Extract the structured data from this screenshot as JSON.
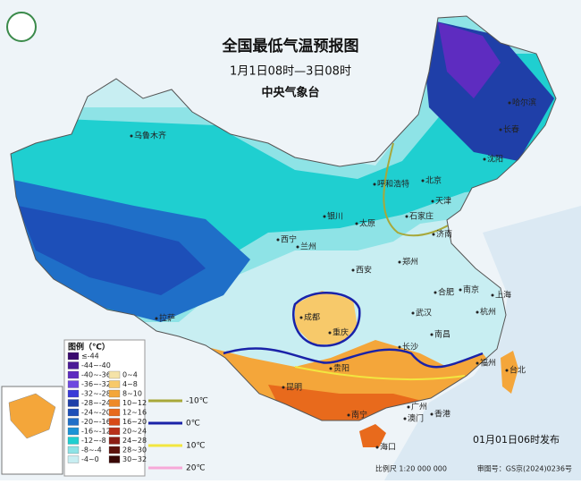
{
  "header": {
    "title": "全国最低气温预报图",
    "subtitle": "1月1日08时—3日08时",
    "org": "中央气象台"
  },
  "legend": {
    "title": "图例（℃）",
    "ranges": [
      {
        "label": "≤-44",
        "color": "#3a0a6e"
      },
      {
        "label": "-44~-40",
        "color": "#4b1a96"
      },
      {
        "label": "-40~-36",
        "color": "#5e2cc0"
      },
      {
        "label": "-36~-32",
        "color": "#6d48e0"
      },
      {
        "label": "-32~-28",
        "color": "#3a3ad8"
      },
      {
        "label": "-28~-24",
        "color": "#1f3fa8"
      },
      {
        "label": "-24~-20",
        "color": "#1d4fb8"
      },
      {
        "label": "-20~-16",
        "color": "#1f6fc8"
      },
      {
        "label": "-16~-12",
        "color": "#1b93d6"
      },
      {
        "label": "-12~-8",
        "color": "#1fcfd0"
      },
      {
        "label": "-8~-4",
        "color": "#8ee3e6"
      },
      {
        "label": "-4~0",
        "color": "#c8eef2"
      },
      {
        "label": "0~4",
        "color": "#f5e3a8"
      },
      {
        "label": "4~8",
        "color": "#f7c96a"
      },
      {
        "label": "8~10",
        "color": "#f4a63a"
      },
      {
        "label": "10~12",
        "color": "#ee8a28"
      },
      {
        "label": "12~16",
        "color": "#e86a1c"
      },
      {
        "label": "16~20",
        "color": "#d84a18"
      },
      {
        "label": "20~24",
        "color": "#b8301a"
      },
      {
        "label": "24~28",
        "color": "#8c1d14"
      },
      {
        "label": "28~30",
        "color": "#5e120c"
      },
      {
        "label": "30~32",
        "color": "#3a0806"
      }
    ],
    "isotherms": [
      {
        "label": "-10℃",
        "color": "#a8a83a"
      },
      {
        "label": "0℃",
        "color": "#1a22a8"
      },
      {
        "label": "10℃",
        "color": "#f2e640"
      },
      {
        "label": "20℃",
        "color": "#f7a8d8"
      }
    ]
  },
  "cities": [
    "乌鲁木齐",
    "拉萨",
    "西宁",
    "兰州",
    "银川",
    "呼和浩特",
    "北京",
    "天津",
    "太原",
    "石家庄",
    "济南",
    "郑州",
    "西安",
    "成都",
    "重庆",
    "贵阳",
    "昆明",
    "南宁",
    "广州",
    "香港",
    "澳门",
    "海口",
    "长沙",
    "南昌",
    "武汉",
    "合肥",
    "南京",
    "上海",
    "杭州",
    "福州",
    "台北",
    "哈尔滨",
    "长春",
    "沈阳"
  ],
  "footer": {
    "issued": "01月01日06时发布",
    "scale": "比例尺 1:20 000 000",
    "approval": "审图号：GS京(2024)0236号"
  }
}
